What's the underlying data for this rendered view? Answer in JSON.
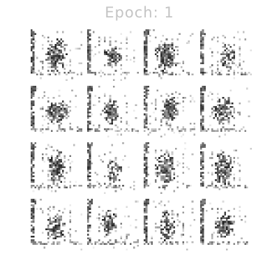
{
  "figure": {
    "title": "Epoch: 1",
    "grid_rows": 4,
    "grid_cols": 4,
    "images": [
      {
        "icon": "generated-sample-icon"
      },
      {
        "icon": "generated-sample-icon"
      },
      {
        "icon": "generated-sample-icon"
      },
      {
        "icon": "generated-sample-icon"
      },
      {
        "icon": "generated-sample-icon"
      },
      {
        "icon": "generated-sample-icon"
      },
      {
        "icon": "generated-sample-icon"
      },
      {
        "icon": "generated-sample-icon"
      },
      {
        "icon": "generated-sample-icon"
      },
      {
        "icon": "generated-sample-icon"
      },
      {
        "icon": "generated-sample-icon"
      },
      {
        "icon": "generated-sample-icon"
      },
      {
        "icon": "generated-sample-icon"
      },
      {
        "icon": "generated-sample-icon"
      },
      {
        "icon": "generated-sample-icon"
      },
      {
        "icon": "generated-sample-icon"
      }
    ]
  }
}
